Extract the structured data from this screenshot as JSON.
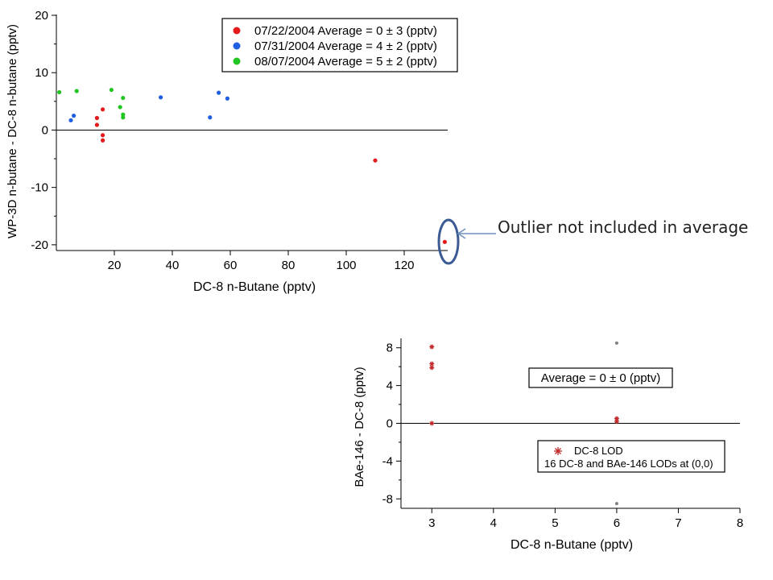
{
  "annotation": {
    "text": "Outlier not included in average"
  },
  "chart_data": [
    {
      "type": "scatter",
      "xlabel": "DC-8 n-Butane (pptv)",
      "ylabel": "WP-3D n-butane  - DC-8 n-butane (pptv)",
      "xlim": [
        0,
        135
      ],
      "ylim": [
        -21,
        20
      ],
      "x_ticks": [
        20,
        40,
        60,
        80,
        100,
        120
      ],
      "y_ticks": [
        20,
        10,
        0,
        -10,
        -20
      ],
      "zero_line": true,
      "legend_position": "top-right",
      "series": [
        {
          "name": "07/22/2004 Average = 0 ± 3 (pptv)",
          "color": "#e41a1c",
          "points": [
            [
              14,
              2.1
            ],
            [
              14,
              0.9
            ],
            [
              16,
              3.6
            ],
            [
              16,
              -0.9
            ],
            [
              16,
              -1.8
            ],
            [
              110,
              -5.3
            ],
            [
              134,
              -19.5
            ]
          ]
        },
        {
          "name": "07/31/2004 Average = 4 ± 2 (pptv)",
          "color": "#1f5fe0",
          "points": [
            [
              5,
              1.7
            ],
            [
              6,
              2.5
            ],
            [
              36,
              5.7
            ],
            [
              53,
              2.2
            ],
            [
              56,
              6.5
            ],
            [
              59,
              5.5
            ]
          ]
        },
        {
          "name": "08/07/2004 Average = 5 ± 2 (pptv)",
          "color": "#22c422",
          "points": [
            [
              1,
              6.6
            ],
            [
              7,
              6.8
            ],
            [
              19,
              7.0
            ],
            [
              22,
              4.0
            ],
            [
              23,
              5.6
            ],
            [
              23,
              2.7
            ],
            [
              23,
              2.2
            ]
          ]
        }
      ]
    },
    {
      "type": "scatter",
      "xlabel": "DC-8 n-Butane (pptv)",
      "ylabel": "BAe-146  - DC-8 (pptv)",
      "xlim": [
        2.5,
        8
      ],
      "ylim": [
        -9,
        9
      ],
      "x_ticks": [
        3,
        4,
        5,
        6,
        7,
        8
      ],
      "y_ticks": [
        8,
        4,
        0,
        -4,
        -8
      ],
      "zero_line": true,
      "average_label": "Average = 0 ± 0 (pptv)",
      "legend": {
        "series_name": "DC-8 LOD",
        "note": "16 DC-8 and BAe-146 LODs at (0,0)"
      },
      "series": [
        {
          "name": "DC-8 LOD",
          "color": "#c0282a",
          "marker": "asterisk",
          "points": [
            [
              3,
              8.1
            ],
            [
              3,
              6.3
            ],
            [
              3,
              5.9
            ],
            [
              3,
              0.0
            ],
            [
              6,
              0.5
            ],
            [
              6,
              0.2
            ]
          ]
        },
        {
          "name": "",
          "color": "#808080",
          "marker": "dot",
          "points": [
            [
              6,
              8.5
            ],
            [
              6,
              -8.5
            ]
          ]
        }
      ]
    }
  ]
}
